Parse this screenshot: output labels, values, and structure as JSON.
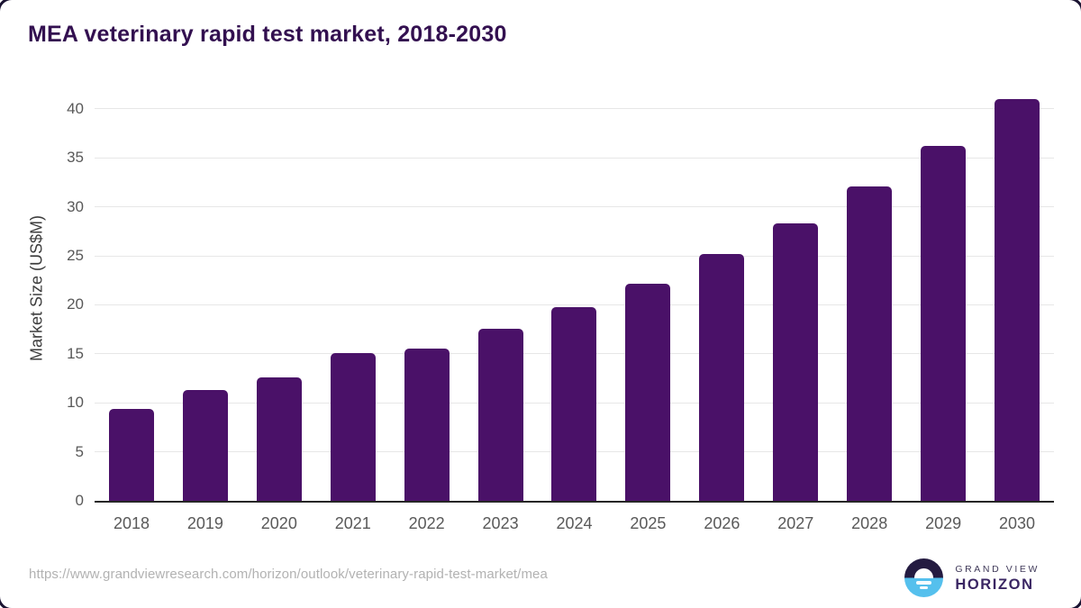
{
  "title": "MEA veterinary rapid test market, 2018-2030",
  "chart_data": {
    "type": "bar",
    "categories": [
      "2018",
      "2019",
      "2020",
      "2021",
      "2022",
      "2023",
      "2024",
      "2025",
      "2026",
      "2027",
      "2028",
      "2029",
      "2030"
    ],
    "values": [
      9.4,
      11.3,
      12.6,
      15.1,
      15.5,
      17.6,
      19.8,
      22.2,
      25.2,
      28.3,
      32.1,
      36.2,
      41.0
    ],
    "title": "MEA veterinary rapid test market, 2018-2030",
    "xlabel": "",
    "ylabel": "Market Size (US$M)",
    "ylim": [
      0,
      41.4
    ],
    "yticks": [
      0,
      5,
      10,
      15,
      20,
      25,
      30,
      35,
      40
    ],
    "grid": true,
    "legend": "none",
    "bar_color": "#4a1168"
  },
  "colors": {
    "title_text": "#331050",
    "bar_fill": "#4a1168",
    "gridline": "#e7e7e7",
    "axis_line": "#262626",
    "tick_text": "#595959",
    "axis_title_text": "#3d3d3d",
    "url_text": "#b2b2b2",
    "logo_dark": "#241b41",
    "logo_blue": "#55c0ed",
    "logo_brand_purple": "#3a2663"
  },
  "footer": {
    "source_url": "https://www.grandviewresearch.com/horizon/outlook/veterinary-rapid-test-market/mea",
    "logo": {
      "brand_top": "GRAND VIEW",
      "brand_bottom": "HORIZON",
      "icon": "horizon-sunrise-icon"
    }
  }
}
